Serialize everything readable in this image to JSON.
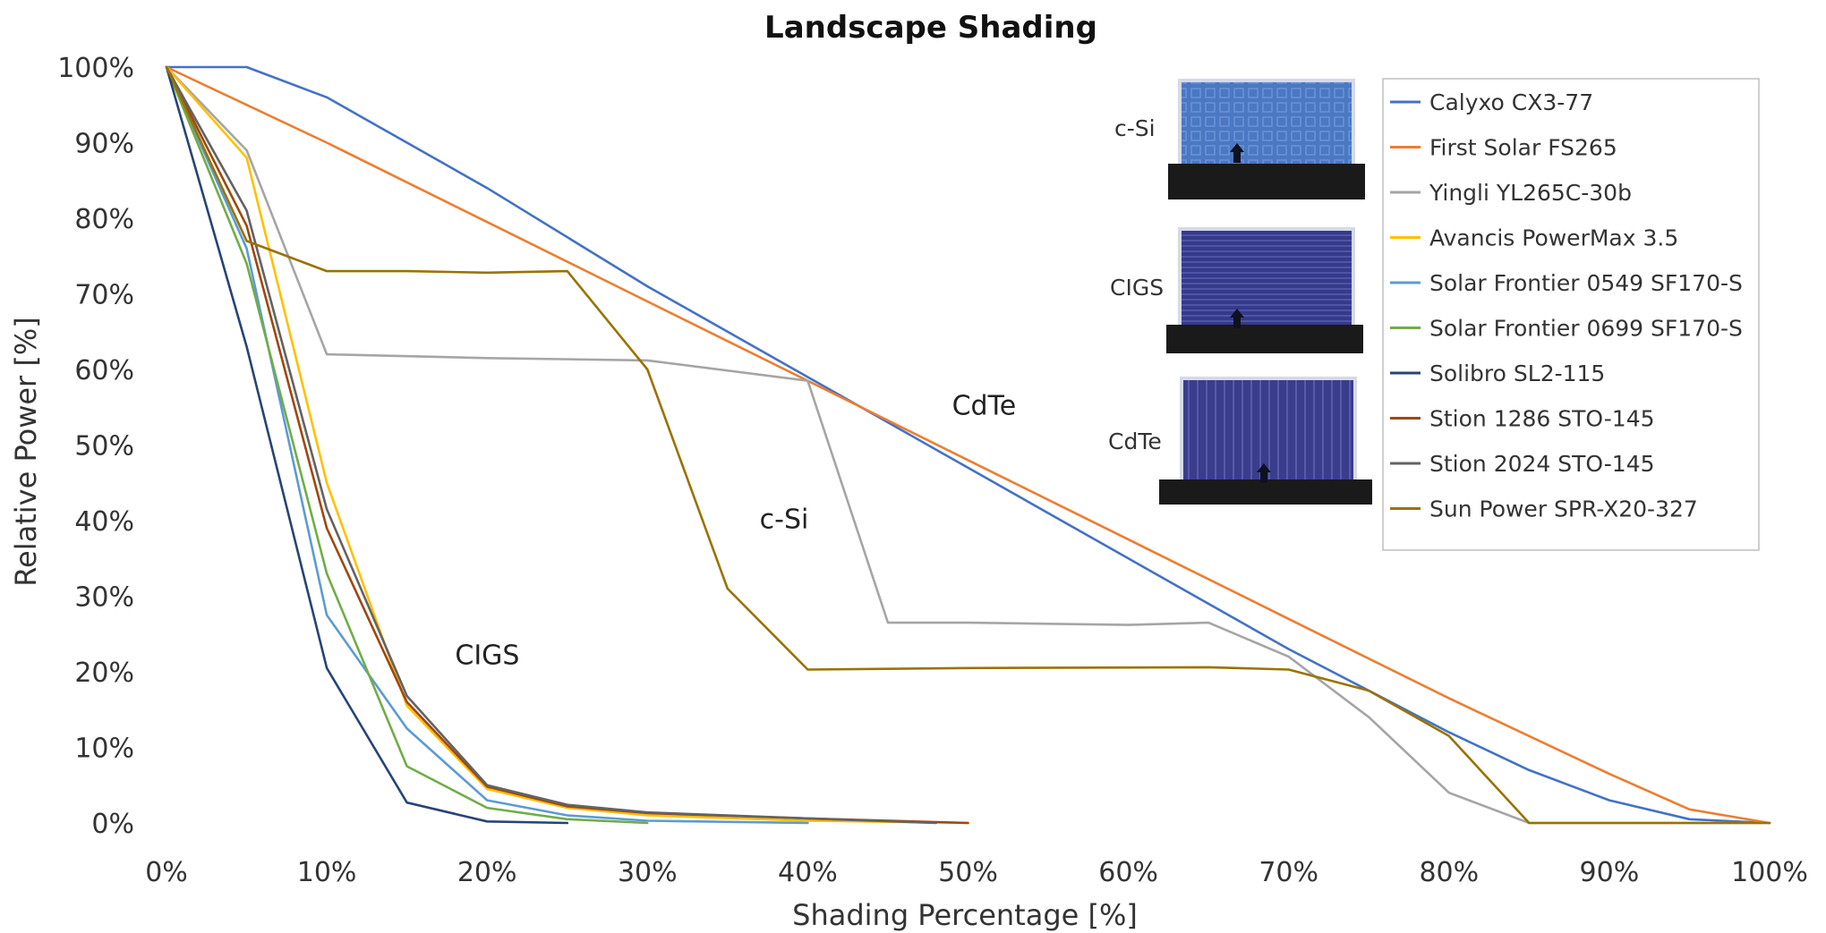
{
  "chart_data": {
    "type": "line",
    "title": "Landscape Shading",
    "xlabel": "Shading Percentage [%]",
    "ylabel": "Relative Power [%]",
    "xlim": [
      0,
      100
    ],
    "ylim": [
      0,
      100
    ],
    "x_ticks": [
      "0%",
      "10%",
      "20%",
      "30%",
      "40%",
      "50%",
      "60%",
      "70%",
      "80%",
      "90%",
      "100%"
    ],
    "y_ticks": [
      "0%",
      "10%",
      "20%",
      "30%",
      "40%",
      "50%",
      "60%",
      "70%",
      "80%",
      "90%",
      "100%"
    ],
    "grid": false,
    "legend_position": "top-right",
    "series": [
      {
        "name": "Calyxo CX3-77",
        "color": "#4472c4",
        "x": [
          0,
          5,
          10,
          20,
          30,
          40,
          50,
          60,
          70,
          80,
          85,
          90,
          95,
          100
        ],
        "y": [
          100,
          100,
          96,
          84,
          71,
          59,
          47,
          35,
          23,
          12,
          7,
          3,
          0.5,
          0
        ]
      },
      {
        "name": "First Solar FS265",
        "color": "#ed7d31",
        "x": [
          0,
          10,
          20,
          30,
          40,
          50,
          60,
          70,
          80,
          90,
          95,
          100
        ],
        "y": [
          100,
          90,
          79.5,
          69,
          58.5,
          48,
          37.5,
          27,
          16.5,
          6.5,
          1.8,
          0
        ]
      },
      {
        "name": "Yingli YL265C-30b",
        "color": "#a5a5a5",
        "x": [
          0,
          5,
          10,
          20,
          30,
          40,
          45,
          50,
          60,
          65,
          70,
          75,
          80,
          85,
          90,
          100
        ],
        "y": [
          100,
          89,
          62,
          61.5,
          61.2,
          58.5,
          26.5,
          26.5,
          26.2,
          26.5,
          22,
          14,
          4,
          0,
          0,
          0
        ]
      },
      {
        "name": "Avancis PowerMax 3.5",
        "color": "#ffc000",
        "x": [
          0,
          5,
          10,
          15,
          20,
          25,
          30,
          40,
          50
        ],
        "y": [
          100,
          88,
          45,
          15.5,
          4.5,
          2,
          1,
          0.3,
          0
        ]
      },
      {
        "name": "Solar Frontier 0549 SF170-S",
        "color": "#5b9bd5",
        "x": [
          0,
          5,
          10,
          15,
          20,
          25,
          30,
          40
        ],
        "y": [
          100,
          76,
          27.5,
          12.5,
          3,
          1,
          0.3,
          0
        ]
      },
      {
        "name": "Solar Frontier 0699 SF170-S",
        "color": "#70ad47",
        "x": [
          0,
          5,
          10,
          15,
          20,
          25,
          30
        ],
        "y": [
          100,
          74,
          33,
          7.5,
          2,
          0.5,
          0
        ]
      },
      {
        "name": "Solibro SL2-115",
        "color": "#264478",
        "x": [
          0,
          5,
          10,
          15,
          20,
          25
        ],
        "y": [
          100,
          63,
          20.5,
          2.7,
          0.2,
          0
        ]
      },
      {
        "name": "Stion 1286 STO-145",
        "color": "#9e480e",
        "x": [
          0,
          5,
          10,
          15,
          20,
          25,
          30,
          40,
          50
        ],
        "y": [
          100,
          79,
          39,
          16,
          4.8,
          2.2,
          1.3,
          0.6,
          0
        ]
      },
      {
        "name": "Stion 2024 STO-145",
        "color": "#636363",
        "x": [
          0,
          5,
          10,
          15,
          20,
          25,
          30,
          40,
          48
        ],
        "y": [
          100,
          81,
          41.5,
          16.8,
          5,
          2.4,
          1.4,
          0.6,
          0
        ]
      },
      {
        "name": "Sun Power SPR-X20-327",
        "color": "#997300",
        "x": [
          0,
          5,
          10,
          15,
          20,
          25,
          30,
          35,
          40,
          50,
          65,
          70,
          75,
          80,
          85,
          90,
          100
        ],
        "y": [
          100,
          77,
          73,
          73,
          72.8,
          73,
          60,
          31,
          20.3,
          20.5,
          20.6,
          20.3,
          17.5,
          11.5,
          0,
          0,
          0
        ]
      }
    ],
    "annotations": [
      {
        "text": "CIGS",
        "x": 18,
        "y": 21
      },
      {
        "text": "c-Si",
        "x": 37,
        "y": 39
      },
      {
        "text": "CdTe",
        "x": 49,
        "y": 54
      }
    ],
    "inset": {
      "labels": [
        "c-Si",
        "CIGS",
        "CdTe"
      ],
      "colors": {
        "cSi": "#4a78c2",
        "cigs": "#353a8a",
        "cdte": "#3a3d8c",
        "base": "#1a1a1a"
      }
    }
  }
}
